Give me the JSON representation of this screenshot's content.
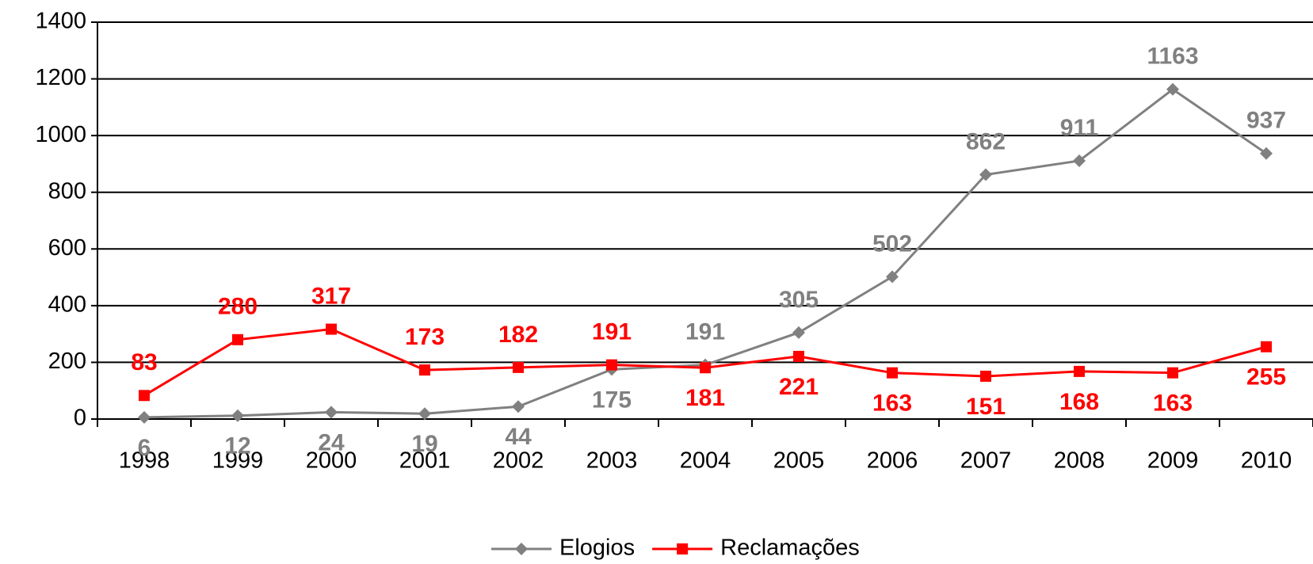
{
  "chart_data": {
    "type": "line",
    "categories": [
      "1998",
      "1999",
      "2000",
      "2001",
      "2002",
      "2003",
      "2004",
      "2005",
      "2006",
      "2007",
      "2008",
      "2009",
      "2010"
    ],
    "series": [
      {
        "name": "Elogios",
        "color": "#808080",
        "marker": "diamond",
        "values": [
          6,
          12,
          24,
          19,
          44,
          175,
          191,
          305,
          502,
          862,
          911,
          1163,
          937
        ]
      },
      {
        "name": "Reclamações",
        "color": "#ff0000",
        "marker": "square",
        "values": [
          83,
          280,
          317,
          173,
          182,
          191,
          181,
          221,
          163,
          151,
          168,
          163,
          255
        ]
      }
    ],
    "ylim": [
      0,
      1400
    ],
    "yticks": [
      0,
      200,
      400,
      600,
      800,
      1000,
      1200,
      1400
    ],
    "grid": true,
    "legend": "bottom"
  }
}
